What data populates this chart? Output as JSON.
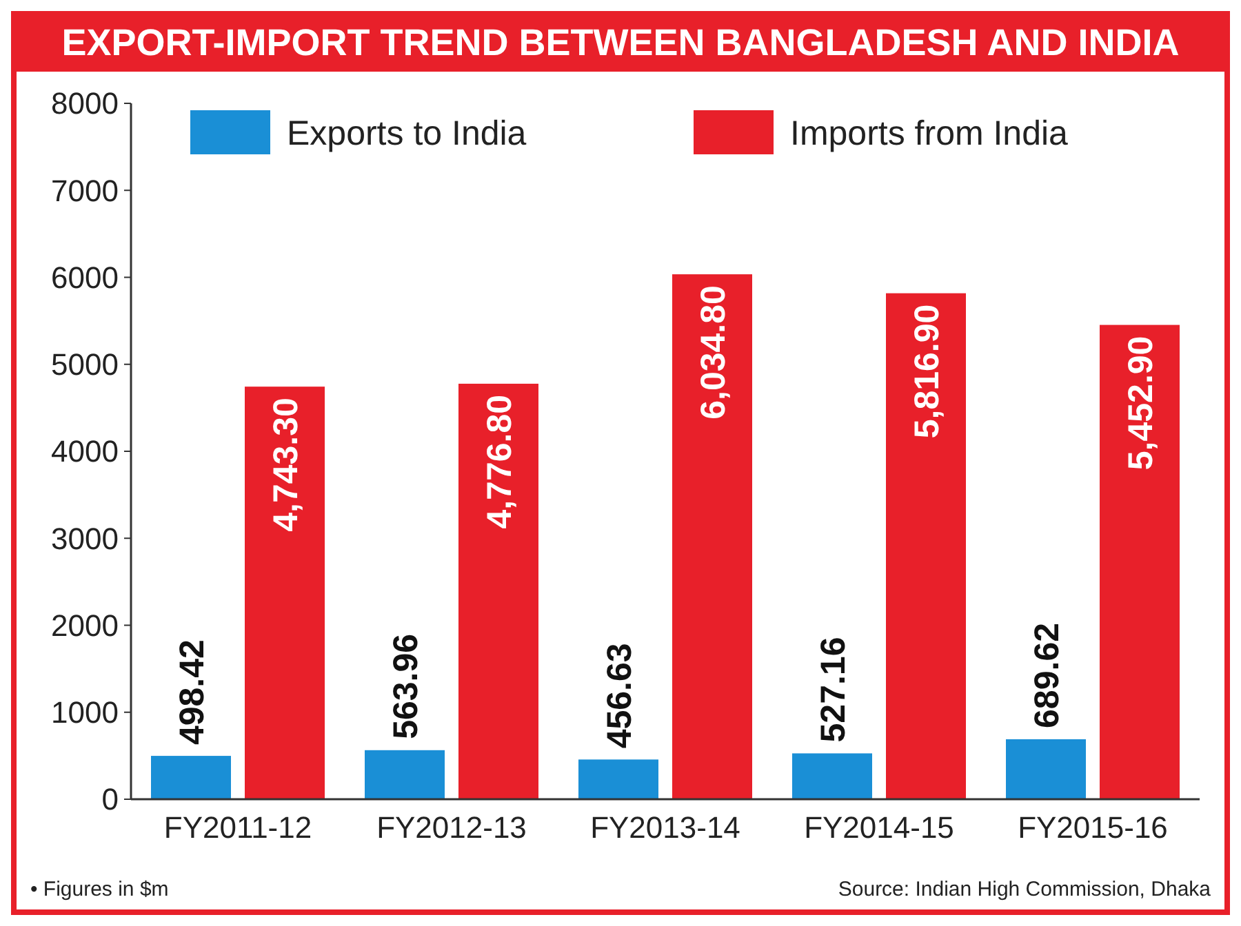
{
  "chart_data": {
    "type": "bar",
    "title": "EXPORT-IMPORT TREND BETWEEN BANGLADESH AND INDIA",
    "categories": [
      "FY2011-12",
      "FY2012-13",
      "FY2013-14",
      "FY2014-15",
      "FY2015-16"
    ],
    "series": [
      {
        "name": "Exports to India",
        "color": "#1a8fd6",
        "values": [
          498.42,
          563.96,
          456.63,
          527.16,
          689.62
        ],
        "value_labels": [
          "498.42",
          "563.96",
          "456.63",
          "527.16",
          "689.62"
        ]
      },
      {
        "name": "Imports from India",
        "color": "#e8202a",
        "values": [
          4743.3,
          4776.8,
          6034.8,
          5816.9,
          5452.9
        ],
        "value_labels": [
          "4,743.30",
          "4,776.80",
          "6,034.80",
          "5,816.90",
          "5,452.90"
        ]
      }
    ],
    "ylim": [
      0,
      8000
    ],
    "yticks": [
      0,
      1000,
      2000,
      3000,
      4000,
      5000,
      6000,
      7000,
      8000
    ],
    "legend": "top",
    "grid": false,
    "annotations": [
      "• Figures in $m",
      "Source: Indian High Commission, Dhaka"
    ]
  }
}
